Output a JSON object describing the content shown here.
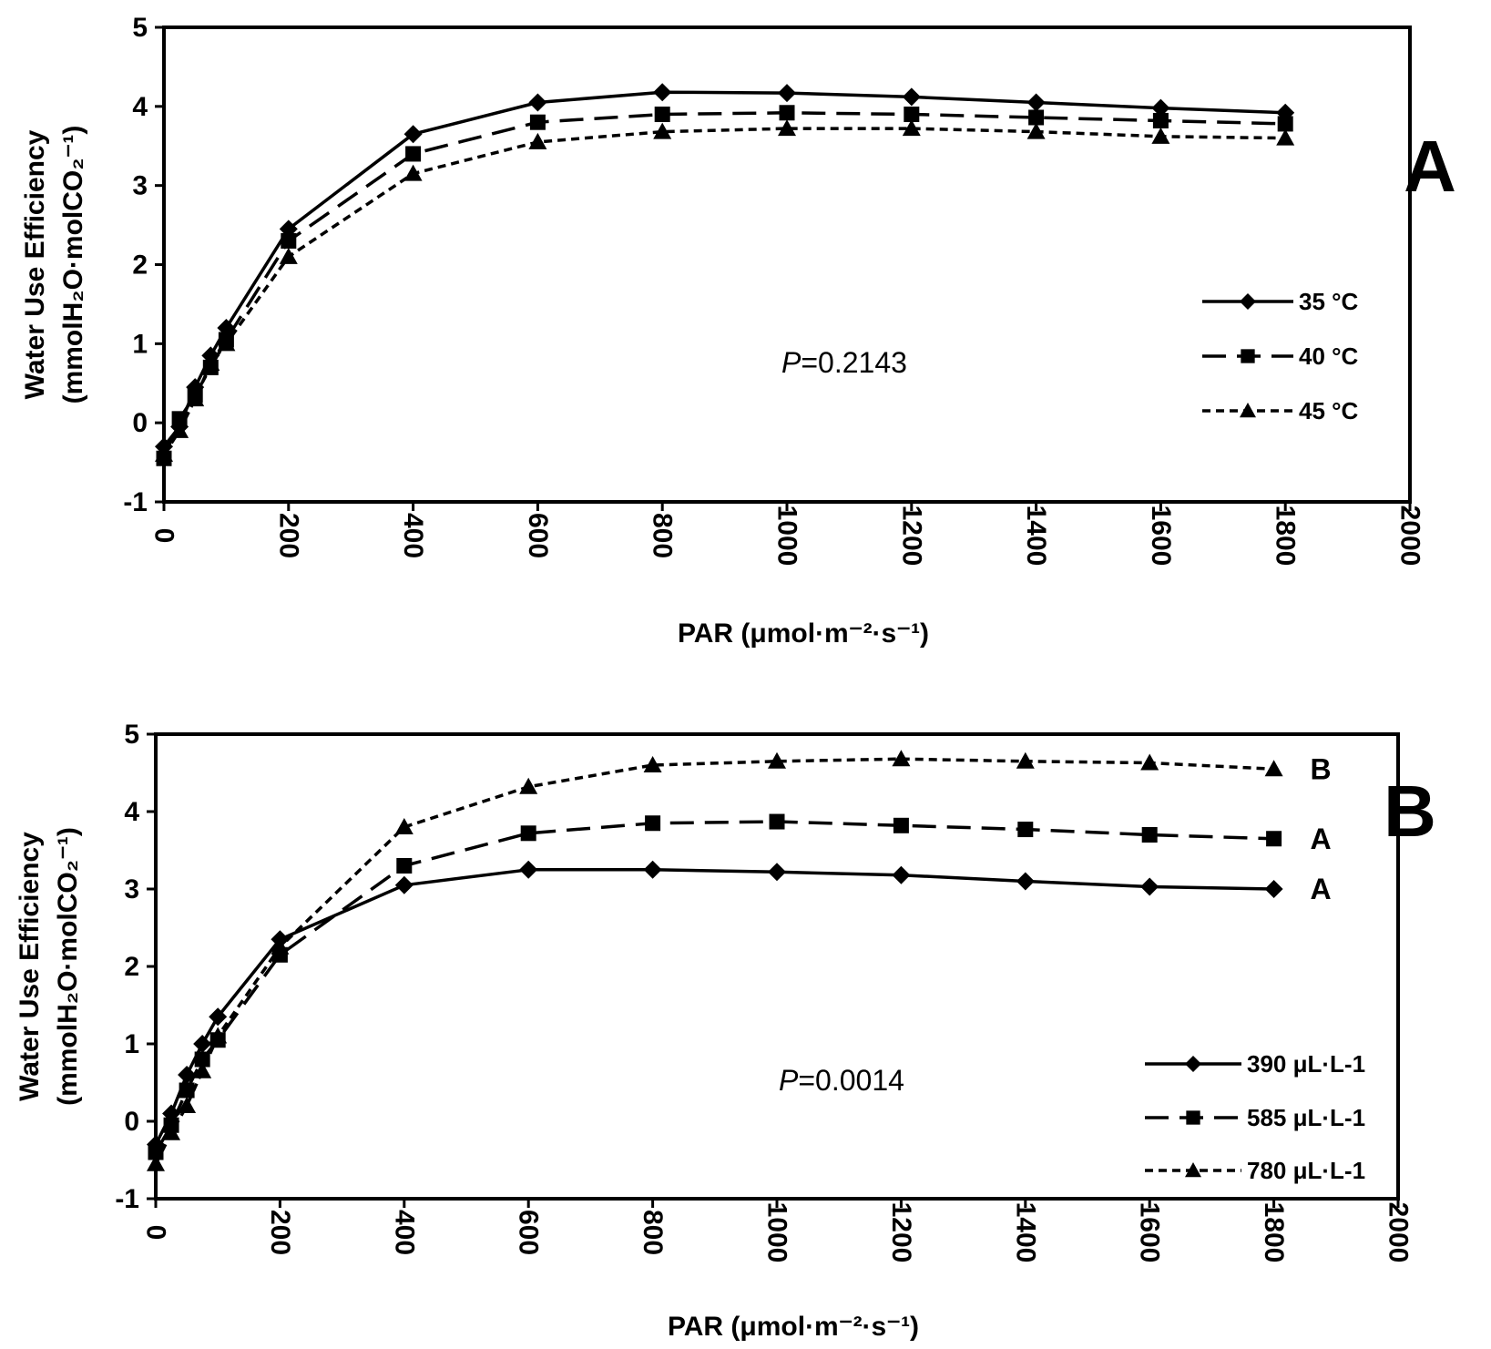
{
  "chart_data": [
    {
      "type": "line",
      "panel_label": "A",
      "xlabel": "PAR (μmol·m⁻²·s⁻¹)",
      "ylabel_line1": "Water Use Efficiency",
      "ylabel_line2": "(mmolH₂O·molCO₂⁻¹)",
      "xlim": [
        0,
        2000
      ],
      "ylim": [
        -1,
        5
      ],
      "xticks": [
        "0",
        "200",
        "400",
        "600",
        "800",
        "1000",
        "1200",
        "1400",
        "1600",
        "1800",
        "2000"
      ],
      "yticks": [
        "-1",
        "0",
        "1",
        "2",
        "3",
        "4",
        "5"
      ],
      "annotation_prefix": "P",
      "annotation_value": "=0.2143",
      "legend_position": "right",
      "x": [
        0,
        25,
        50,
        75,
        100,
        200,
        400,
        600,
        800,
        1000,
        1200,
        1400,
        1600,
        1800
      ],
      "series": [
        {
          "name": "35 °C",
          "marker": "diamond",
          "dash": "none",
          "values": [
            -0.3,
            -0.05,
            0.45,
            0.85,
            1.2,
            2.45,
            3.65,
            4.05,
            4.18,
            4.17,
            4.12,
            4.05,
            3.98,
            3.92
          ]
        },
        {
          "name": "40 °C",
          "marker": "square",
          "dash": "long",
          "values": [
            -0.45,
            0.05,
            0.35,
            0.7,
            1.05,
            2.3,
            3.4,
            3.8,
            3.9,
            3.92,
            3.9,
            3.86,
            3.82,
            3.78
          ]
        },
        {
          "name": "45 °C",
          "marker": "triangle",
          "dash": "short",
          "values": [
            -0.4,
            -0.1,
            0.3,
            0.75,
            1.0,
            2.1,
            3.15,
            3.55,
            3.68,
            3.72,
            3.72,
            3.68,
            3.62,
            3.6
          ]
        }
      ]
    },
    {
      "type": "line",
      "panel_label": "B",
      "xlabel": "PAR (μmol·m⁻²·s⁻¹)",
      "ylabel_line1": "Water Use Efficiency",
      "ylabel_line2": "(mmolH₂O·molCO₂⁻¹)",
      "xlim": [
        0,
        2000
      ],
      "ylim": [
        -1,
        5
      ],
      "xticks": [
        "0",
        "200",
        "400",
        "600",
        "800",
        "1000",
        "1200",
        "1400",
        "1600",
        "1800",
        "2000"
      ],
      "yticks": [
        "-1",
        "0",
        "1",
        "2",
        "3",
        "4",
        "5"
      ],
      "annotation_prefix": "P",
      "annotation_value": "=0.0014",
      "legend_position": "bottom-right",
      "x": [
        0,
        25,
        50,
        75,
        100,
        200,
        400,
        600,
        800,
        1000,
        1200,
        1400,
        1600,
        1800
      ],
      "series": [
        {
          "name": "390 μL·L-1",
          "marker": "diamond",
          "dash": "none",
          "significance": "A",
          "values": [
            -0.3,
            0.1,
            0.6,
            1.0,
            1.35,
            2.35,
            3.05,
            3.25,
            3.25,
            3.22,
            3.18,
            3.1,
            3.03,
            3.0
          ]
        },
        {
          "name": "585 μL·L-1",
          "marker": "square",
          "dash": "long",
          "significance": "A",
          "values": [
            -0.4,
            -0.05,
            0.4,
            0.8,
            1.05,
            2.15,
            3.3,
            3.72,
            3.85,
            3.87,
            3.82,
            3.77,
            3.7,
            3.65
          ]
        },
        {
          "name": "780 μL·L-1",
          "marker": "triangle",
          "dash": "short",
          "significance": "B",
          "values": [
            -0.55,
            -0.15,
            0.2,
            0.65,
            1.1,
            2.25,
            3.8,
            4.32,
            4.6,
            4.65,
            4.68,
            4.65,
            4.63,
            4.55
          ]
        }
      ]
    }
  ]
}
